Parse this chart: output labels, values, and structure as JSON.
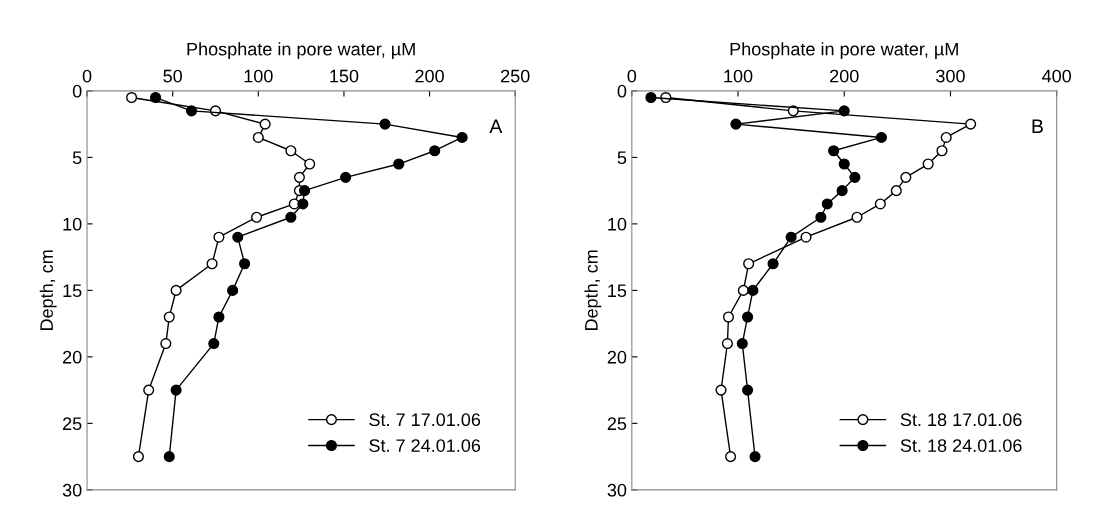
{
  "chart_data": [
    {
      "type": "line",
      "xlabel": "Phosphate in pore water, µM",
      "ylabel": "Depth, cm",
      "annotations": [
        "A"
      ],
      "xlim": [
        0,
        250
      ],
      "xticks": [
        0,
        50,
        100,
        150,
        200,
        250
      ],
      "ylim": [
        30,
        0
      ],
      "yticks": [
        0,
        5,
        10,
        15,
        20,
        25,
        30
      ],
      "legend": "bottom right",
      "marker": "circle",
      "line_style": "solid",
      "series": [
        {
          "name": "St. 7 17.01.06",
          "color": "#ffffff",
          "x": [
            26,
            75,
            104,
            100,
            119,
            130,
            124,
            124,
            121,
            99,
            77,
            73,
            52,
            48,
            46,
            36,
            30
          ],
          "values": [
            0.5,
            1.5,
            2.5,
            3.5,
            4.5,
            5.5,
            6.5,
            7.5,
            8.5,
            9.5,
            11,
            13,
            15,
            17,
            19,
            22.5,
            27.5
          ]
        },
        {
          "name": "St. 7 24.01.06",
          "color": "#000000",
          "x": [
            40,
            61,
            174,
            219,
            203,
            182,
            151,
            127,
            126,
            119,
            88,
            92,
            85,
            77,
            74,
            52,
            48
          ],
          "values": [
            0.5,
            1.5,
            2.5,
            3.5,
            4.5,
            5.5,
            6.5,
            7.5,
            8.5,
            9.5,
            11,
            13,
            15,
            17,
            19,
            22.5,
            27.5
          ]
        }
      ]
    },
    {
      "type": "line",
      "xlabel": "Phosphate in pore water, µM",
      "ylabel": "Depth, cm",
      "annotations": [
        "B"
      ],
      "xlim": [
        0,
        400
      ],
      "xticks": [
        0,
        100,
        200,
        300,
        400
      ],
      "ylim": [
        30,
        0
      ],
      "yticks": [
        0,
        5,
        10,
        15,
        20,
        25,
        30
      ],
      "legend": "bottom right",
      "marker": "circle",
      "line_style": "solid",
      "series": [
        {
          "name": "St. 18 17.01.06",
          "color": "#ffffff",
          "x": [
            32,
            152,
            319,
            296,
            292,
            279,
            258,
            249,
            234,
            212,
            164,
            110,
            105,
            91,
            90,
            84,
            93
          ],
          "values": [
            0.5,
            1.5,
            2.5,
            3.5,
            4.5,
            5.5,
            6.5,
            7.5,
            8.5,
            9.5,
            11,
            13,
            15,
            17,
            19,
            22.5,
            27.5
          ]
        },
        {
          "name": "St. 18 24.01.06",
          "color": "#000000",
          "x": [
            18,
            200,
            98,
            235,
            190,
            200,
            210,
            198,
            184,
            178,
            150,
            133,
            114,
            109,
            104,
            109,
            116
          ],
          "values": [
            0.5,
            1.5,
            2.5,
            3.5,
            4.5,
            5.5,
            6.5,
            7.5,
            8.5,
            9.5,
            11,
            13,
            15,
            17,
            19,
            22.5,
            27.5
          ]
        }
      ]
    }
  ]
}
